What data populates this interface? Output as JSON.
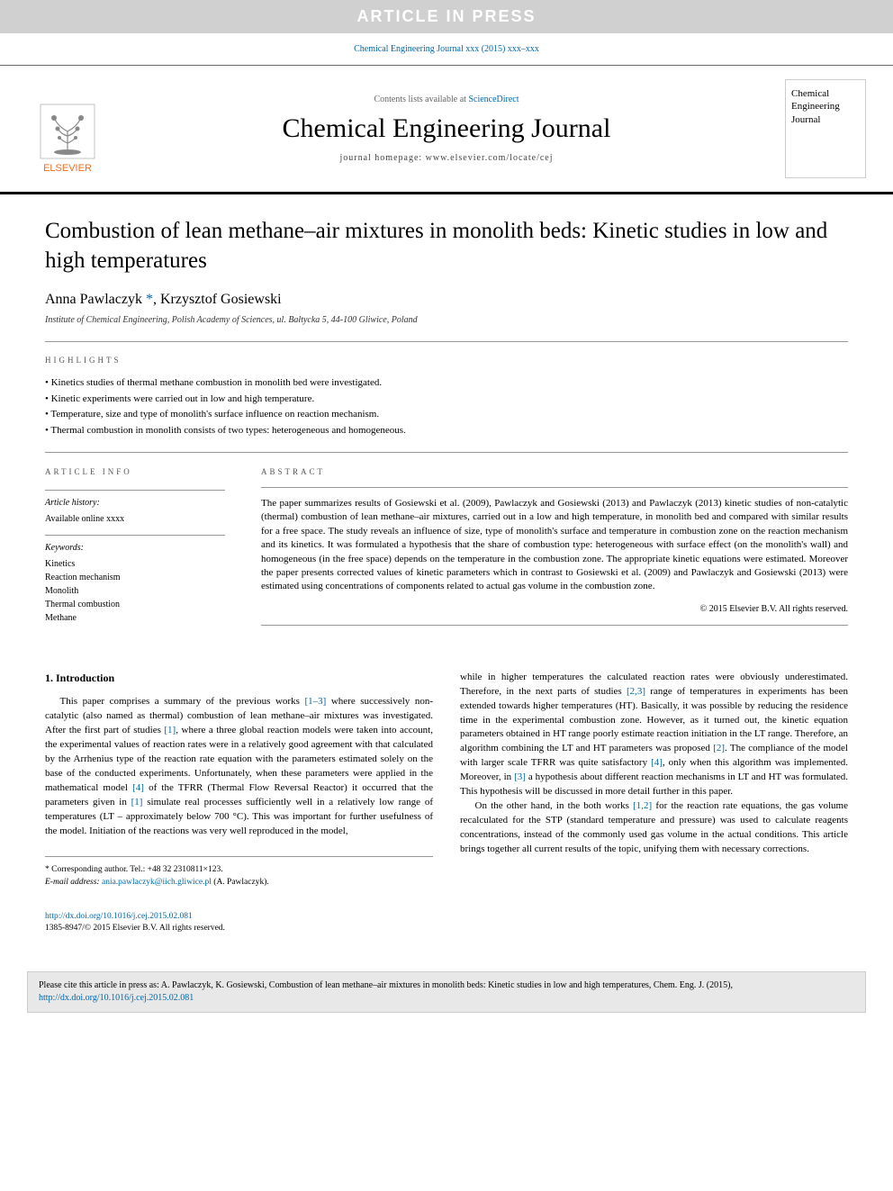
{
  "banner": {
    "text": "ARTICLE IN PRESS"
  },
  "citation_line": "Chemical Engineering Journal xxx (2015) xxx–xxx",
  "header": {
    "contents_text": "Contents lists available at ",
    "contents_link": "ScienceDirect",
    "journal_name": "Chemical Engineering Journal",
    "homepage_text": "journal homepage: www.elsevier.com/locate/cej",
    "publisher": "ELSEVIER",
    "cover_text": "Chemical Engineering Journal"
  },
  "title": "Combustion of lean methane–air mixtures in monolith beds: Kinetic studies in low and high temperatures",
  "authors": [
    {
      "name": "Anna Pawlaczyk",
      "corresponding": true
    },
    {
      "name": "Krzysztof Gosiewski",
      "corresponding": false
    }
  ],
  "affiliation": "Institute of Chemical Engineering, Polish Academy of Sciences, ul. Bałtycka 5, 44-100 Gliwice, Poland",
  "highlights": {
    "label": "HIGHLIGHTS",
    "items": [
      "Kinetics studies of thermal methane combustion in monolith bed were investigated.",
      "Kinetic experiments were carried out in low and high temperature.",
      "Temperature, size and type of monolith's surface influence on reaction mechanism.",
      "Thermal combustion in monolith consists of two types: heterogeneous and homogeneous."
    ]
  },
  "article_info": {
    "label": "ARTICLE INFO",
    "history_heading": "Article history:",
    "history_text": "Available online xxxx",
    "keywords_heading": "Keywords:",
    "keywords": [
      "Kinetics",
      "Reaction mechanism",
      "Monolith",
      "Thermal combustion",
      "Methane"
    ]
  },
  "abstract": {
    "label": "ABSTRACT",
    "text": "The paper summarizes results of Gosiewski et al. (2009), Pawlaczyk and Gosiewski (2013) and Pawlaczyk (2013) kinetic studies of non-catalytic (thermal) combustion of lean methane–air mixtures, carried out in a low and high temperature, in monolith bed and compared with similar results for a free space. The study reveals an influence of size, type of monolith's surface and temperature in combustion zone on the reaction mechanism and its kinetics. It was formulated a hypothesis that the share of combustion type: heterogeneous with surface effect (on the monolith's wall) and homogeneous (in the free space) depends on the temperature in the combustion zone. The appropriate kinetic equations were estimated. Moreover the paper presents corrected values of kinetic parameters which in contrast to Gosiewski et al. (2009) and Pawlaczyk and Gosiewski (2013) were estimated using concentrations of components related to actual gas volume in the combustion zone.",
    "copyright": "© 2015 Elsevier B.V. All rights reserved."
  },
  "body": {
    "section_heading": "1. Introduction",
    "col1_html": "This paper comprises a summary of the previous works <span class=\"ref\">[1–3]</span> where successively non-catalytic (also named as thermal) combustion of lean methane–air mixtures was investigated. After the first part of studies <span class=\"ref\">[1]</span>, where a three global reaction models were taken into account, the experimental values of reaction rates were in a relatively good agreement with that calculated by the Arrhenius type of the reaction rate equation with the parameters estimated solely on the base of the conducted experiments. Unfortunately, when these parameters were applied in the mathematical model <span class=\"ref\">[4]</span> of the TFRR (Thermal Flow Reversal Reactor) it occurred that the parameters given in <span class=\"ref\">[1]</span> simulate real processes sufficiently well in a relatively low range of temperatures (LT – approximately below 700 °C). This was important for further usefulness of the model. Initiation of the reactions was very well reproduced in the model,",
    "col2_p1_html": "while in higher temperatures the calculated reaction rates were obviously underestimated. Therefore, in the next parts of studies <span class=\"ref\">[2,3]</span> range of temperatures in experiments has been extended towards higher temperatures (HT). Basically, it was possible by reducing the residence time in the experimental combustion zone. However, as it turned out, the kinetic equation parameters obtained in HT range poorly estimate reaction initiation in the LT range. Therefore, an algorithm combining the LT and HT parameters was proposed <span class=\"ref\">[2]</span>. The compliance of the model with larger scale TFRR was quite satisfactory <span class=\"ref\">[4]</span>, only when this algorithm was implemented. Moreover, in <span class=\"ref\">[3]</span> a hypothesis about different reaction mechanisms in LT and HT was formulated. This hypothesis will be discussed in more detail further in this paper.",
    "col2_p2_html": "On the other hand, in the both works <span class=\"ref\">[1,2]</span> for the reaction rate equations, the gas volume recalculated for the STP (standard temperature and pressure) was used to calculate reagents concentrations, instead of the commonly used gas volume in the actual conditions. This article brings together all current results of the topic, unifying them with necessary corrections."
  },
  "footer": {
    "corresponding_label": "* Corresponding author. Tel.: +48 32 2310811×123.",
    "email_label": "E-mail address:",
    "email": "ania.pawlaczyk@iich.gliwice.pl",
    "email_author": "(A. Pawlaczyk).",
    "doi_url": "http://dx.doi.org/10.1016/j.cej.2015.02.081",
    "issn_line": "1385-8947/© 2015 Elsevier B.V. All rights reserved."
  },
  "cite_box": {
    "text_prefix": "Please cite this article in press as: A. Pawlaczyk, K. Gosiewski, Combustion of lean methane–air mixtures in monolith beds: Kinetic studies in low and high temperatures, Chem. Eng. J. (2015), ",
    "url": "http://dx.doi.org/10.1016/j.cej.2015.02.081"
  },
  "colors": {
    "link": "#0066aa",
    "banner_bg": "#d0d0d0",
    "elsevier_orange": "#F36C21",
    "cite_bg": "#e8e8e8",
    "divider": "#999999"
  }
}
